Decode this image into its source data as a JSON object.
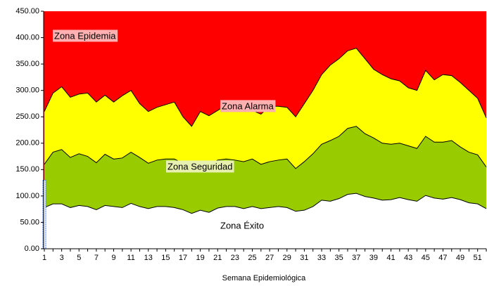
{
  "chart_data": {
    "type": "area",
    "xlabel": "Semana Epidemiológica",
    "categories": [
      1,
      null,
      3,
      null,
      5,
      null,
      7,
      null,
      9,
      null,
      11,
      null,
      13,
      null,
      15,
      null,
      17,
      null,
      19,
      null,
      21,
      null,
      23,
      null,
      25,
      null,
      27,
      null,
      29,
      null,
      31,
      null,
      33,
      null,
      35,
      null,
      37,
      null,
      39,
      null,
      41,
      null,
      43,
      null,
      45,
      null,
      47,
      null,
      49,
      null,
      51,
      null
    ],
    "ylim": [
      0,
      450
    ],
    "yticks": [
      {
        "value": 0,
        "label": "0.00"
      },
      {
        "value": 50,
        "label": "50.00"
      },
      {
        "value": 100,
        "label": "100.00"
      },
      {
        "value": 150,
        "label": "150.00"
      },
      {
        "value": 200,
        "label": "200.00"
      },
      {
        "value": 250,
        "label": "250.00"
      },
      {
        "value": 300,
        "label": "300.00"
      },
      {
        "value": 350,
        "label": "350.00"
      },
      {
        "value": 400,
        "label": "400.00"
      },
      {
        "value": 450,
        "label": "450.00"
      }
    ],
    "series": [
      {
        "name": "Zona Éxito",
        "color": "#ffffff",
        "values": [
          78,
          85,
          85,
          78,
          82,
          80,
          74,
          82,
          80,
          78,
          86,
          80,
          76,
          80,
          80,
          78,
          74,
          67,
          73,
          69,
          77,
          80,
          80,
          76,
          80,
          76,
          78,
          80,
          78,
          71,
          73,
          80,
          92,
          90,
          95,
          103,
          105,
          99,
          96,
          92,
          93,
          97,
          93,
          90,
          101,
          96,
          94,
          97,
          93,
          87,
          85,
          76
        ]
      },
      {
        "name": "Zona Seguridad",
        "color": "#99cc00",
        "values": [
          160,
          183,
          188,
          173,
          180,
          175,
          163,
          179,
          170,
          172,
          183,
          173,
          162,
          168,
          170,
          170,
          162,
          155,
          160,
          158,
          168,
          170,
          168,
          165,
          170,
          160,
          165,
          168,
          170,
          152,
          165,
          180,
          198,
          205,
          213,
          228,
          232,
          218,
          210,
          200,
          198,
          200,
          195,
          190,
          213,
          202,
          202,
          205,
          193,
          183,
          178,
          155
        ]
      },
      {
        "name": "Zona Alarma",
        "color": "#ffff00",
        "values": [
          260,
          295,
          307,
          287,
          293,
          295,
          278,
          291,
          278,
          290,
          300,
          275,
          260,
          268,
          273,
          278,
          250,
          232,
          260,
          252,
          262,
          272,
          265,
          268,
          262,
          255,
          270,
          270,
          268,
          250,
          275,
          300,
          330,
          348,
          360,
          375,
          380,
          360,
          340,
          330,
          322,
          318,
          305,
          300,
          338,
          320,
          330,
          328,
          315,
          300,
          285,
          248
        ]
      }
    ],
    "epidemia": {
      "name": "Zona Epidemia",
      "color": "#ff0000"
    },
    "bar": {
      "color": "#3366ff",
      "x": [
        1
      ],
      "values": [
        130
      ]
    }
  }
}
